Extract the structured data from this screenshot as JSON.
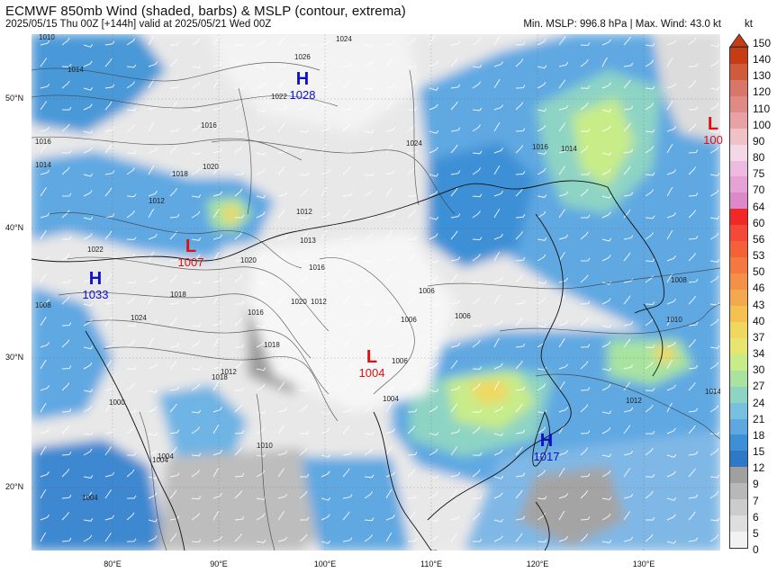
{
  "header": {
    "title": "ECMWF 850mb Wind (shaded, barbs) & MSLP (contour, extrema)",
    "subtitle": "2025/05/15 Thu 00Z [+144h] valid at 2025/05/21 Wed 00Z",
    "stats": "Min. MSLP: 996.8 hPa | Max. Wind: 43.0 kt"
  },
  "colorbar": {
    "unit": "kt",
    "levels": [
      "150",
      "140",
      "130",
      "120",
      "110",
      "100",
      "90",
      "80",
      "75",
      "70",
      "64",
      "60",
      "56",
      "53",
      "50",
      "46",
      "43",
      "40",
      "37",
      "34",
      "30",
      "27",
      "24",
      "21",
      "18",
      "15",
      "12",
      "9",
      "7",
      "6",
      "5",
      "0"
    ],
    "colors": [
      "#c83c14",
      "#d05a3c",
      "#d8766a",
      "#e08a86",
      "#e8a2a6",
      "#f0c2c8",
      "#f5d8e8",
      "#eebbe0",
      "#e6a2d4",
      "#dd88c8",
      "#f02828",
      "#f44838",
      "#f46038",
      "#f47840",
      "#f49048",
      "#f4a850",
      "#f4c050",
      "#f0d860",
      "#e8e470",
      "#c8ec88",
      "#a8e4a0",
      "#8ed4c4",
      "#78c0e0",
      "#5ea8e2",
      "#3c90d6",
      "#2e78c8",
      "#a0a0a0",
      "#b8b8b8",
      "#cccccc",
      "#dedede",
      "#f2f2f2"
    ]
  },
  "axes": {
    "lat_labels": [
      "50°N",
      "40°N",
      "30°N",
      "20°N"
    ],
    "lon_labels": [
      "80°E",
      "90°E",
      "100°E",
      "110°E",
      "120°E",
      "130°E"
    ]
  },
  "pressure_centers": [
    {
      "type": "H",
      "value": "1028"
    },
    {
      "type": "L",
      "value": "1007"
    },
    {
      "type": "H",
      "value": "1033"
    },
    {
      "type": "L",
      "value": "1004"
    },
    {
      "type": "H",
      "value": "1017"
    },
    {
      "type": "L",
      "value": "100"
    }
  ],
  "isobar_labels": [
    "1010",
    "1014",
    "1016",
    "1014",
    "1018",
    "1012",
    "1016",
    "1020",
    "1026",
    "1024",
    "1022",
    "1022",
    "1020",
    "1018",
    "1012",
    "1016",
    "1013",
    "1012",
    "1006",
    "1006",
    "1006",
    "1008",
    "1010",
    "1014",
    "1012",
    "1016",
    "1024",
    "1016",
    "1018",
    "1012",
    "1006",
    "1004",
    "1000",
    "1004",
    "1004",
    "1010",
    "1004",
    "1014",
    "1024",
    "1008",
    "1020",
    "1018"
  ]
}
